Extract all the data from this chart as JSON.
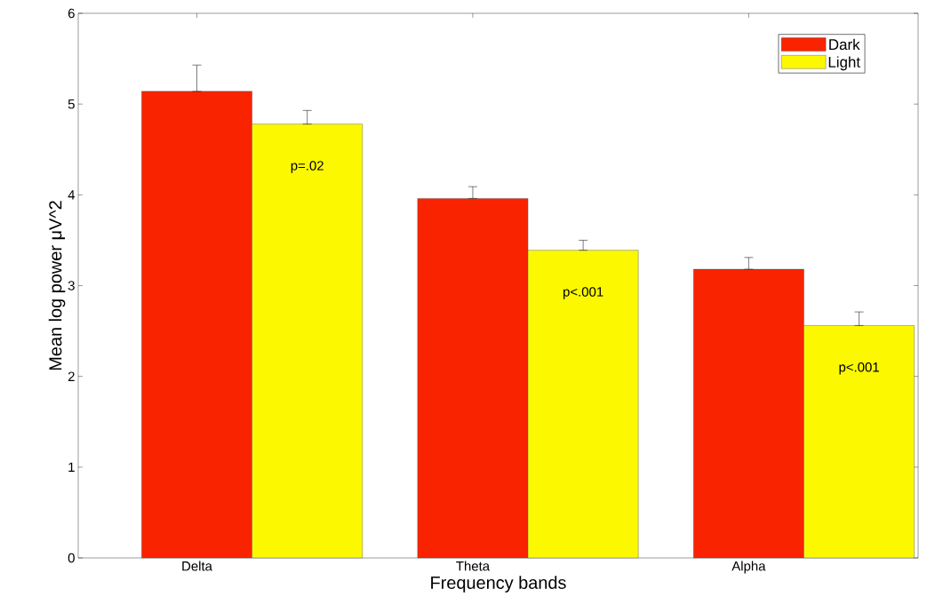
{
  "chart_data": {
    "type": "bar",
    "xlabel": "Frequency bands",
    "ylabel": "Mean log power  μV^2",
    "categories": [
      "Delta",
      "Theta",
      "Alpha"
    ],
    "series": [
      {
        "name": "Dark",
        "color": "#f92300",
        "values": [
          5.14,
          3.96,
          3.18
        ],
        "errors": [
          [
            5.14,
            5.43
          ],
          [
            3.96,
            4.09
          ],
          [
            3.18,
            3.31
          ]
        ]
      },
      {
        "name": "Light",
        "color": "#fcf800",
        "values": [
          4.78,
          3.39,
          2.56
        ],
        "errors": [
          [
            4.78,
            4.93
          ],
          [
            3.39,
            3.5
          ],
          [
            2.56,
            2.71
          ]
        ]
      }
    ],
    "ylim": [
      0,
      6
    ],
    "yticks": [
      0,
      1,
      2,
      3,
      4,
      5,
      6
    ],
    "annotations": [
      "p=.02",
      "p<.001",
      "p<.001"
    ],
    "grid": false,
    "legend": "top right"
  }
}
